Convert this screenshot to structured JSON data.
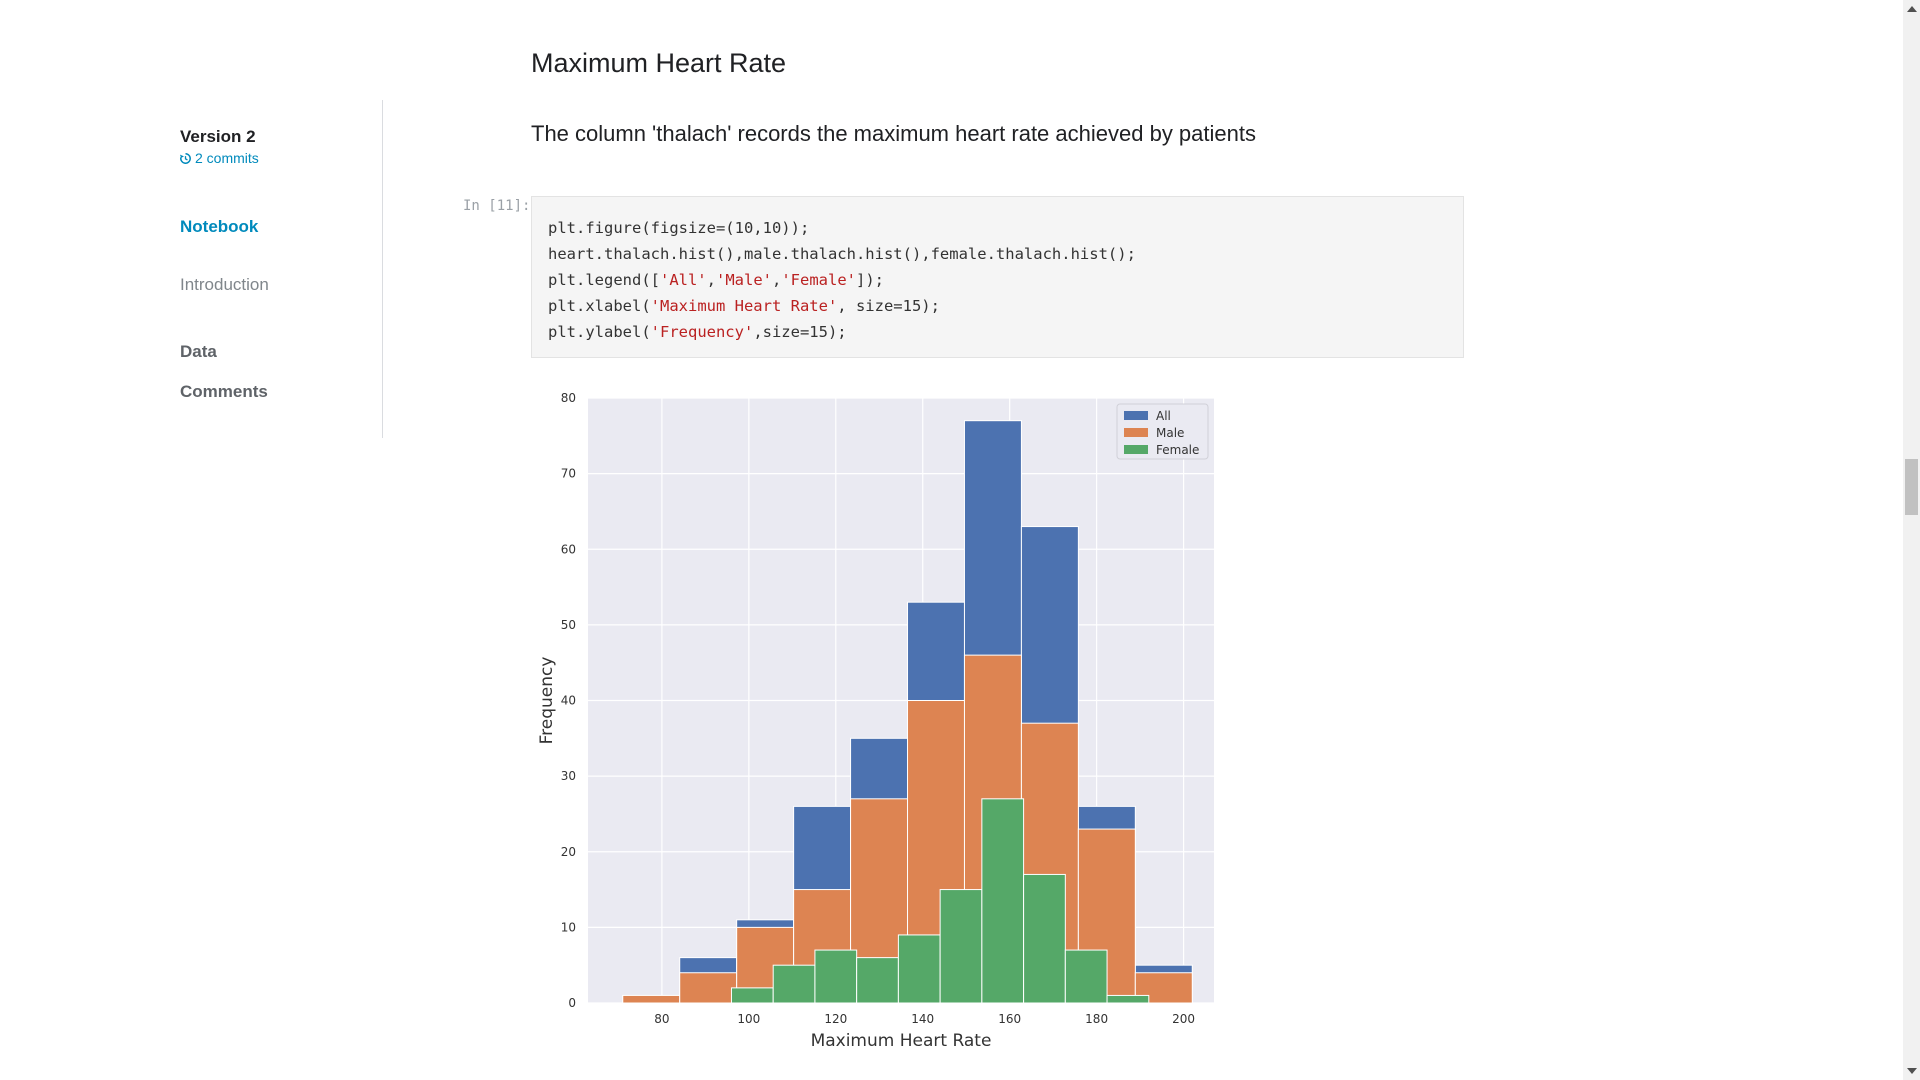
{
  "sidebar": {
    "version_title": "Version 2",
    "commits_label": "2 commits",
    "nav": [
      {
        "label": "Notebook",
        "active": true
      },
      {
        "label": "Introduction",
        "active": false
      },
      {
        "label": "Data",
        "active": false
      },
      {
        "label": "Comments",
        "active": false
      }
    ],
    "accent_color": "#008abc"
  },
  "main": {
    "section_heading": "Maximum Heart Rate",
    "description": "The column 'thalach' records the maximum heart rate achieved by patients",
    "cell_prompt": "In [11]:",
    "code": {
      "line1": "plt.figure(figsize=(10,10));",
      "line2": "heart.thalach.hist(),male.thalach.hist(),female.thalach.hist();",
      "line3_pre": "plt.legend([",
      "line3_s1": "'All'",
      "line3_c1": ",",
      "line3_s2": "'Male'",
      "line3_c2": ",",
      "line3_s3": "'Female'",
      "line3_post": "]);",
      "line4_pre": "plt.xlabel(",
      "line4_s": "'Maximum Heart Rate'",
      "line4_post": ", size=15);",
      "line5_pre": "plt.ylabel(",
      "line5_s": "'Frequency'",
      "line5_post": ",size=15);"
    }
  },
  "chart_data": {
    "type": "bar",
    "subtype": "overlaid_histogram",
    "xlabel": "Maximum Heart Rate",
    "ylabel": "Frequency",
    "xlim": [
      63,
      207
    ],
    "ylim": [
      0,
      80
    ],
    "xticks": [
      80,
      100,
      120,
      140,
      160,
      180,
      200
    ],
    "yticks": [
      0,
      10,
      20,
      30,
      40,
      50,
      60,
      70,
      80
    ],
    "grid": true,
    "legend_position": "top-right",
    "series": [
      {
        "name": "All",
        "color": "#4c72b0",
        "bins": [
          [
            71,
            84.1,
            1
          ],
          [
            84.1,
            97.2,
            6
          ],
          [
            97.2,
            110.3,
            11
          ],
          [
            110.3,
            123.4,
            26
          ],
          [
            123.4,
            136.5,
            35
          ],
          [
            136.5,
            149.6,
            53
          ],
          [
            149.6,
            162.7,
            77
          ],
          [
            162.7,
            175.8,
            63
          ],
          [
            175.8,
            188.9,
            26
          ],
          [
            188.9,
            202,
            5
          ]
        ]
      },
      {
        "name": "Male",
        "color": "#dd8452",
        "bins": [
          [
            71,
            84.1,
            1
          ],
          [
            84.1,
            97.2,
            4
          ],
          [
            97.2,
            110.3,
            10
          ],
          [
            110.3,
            123.4,
            15
          ],
          [
            123.4,
            136.5,
            27
          ],
          [
            136.5,
            149.6,
            40
          ],
          [
            149.6,
            162.7,
            46
          ],
          [
            162.7,
            175.8,
            37
          ],
          [
            175.8,
            188.9,
            23
          ],
          [
            188.9,
            202,
            4
          ]
        ]
      },
      {
        "name": "Female",
        "color": "#55a868",
        "bins": [
          [
            96,
            105.6,
            2
          ],
          [
            105.6,
            115.2,
            5
          ],
          [
            115.2,
            124.8,
            7
          ],
          [
            124.8,
            134.4,
            6
          ],
          [
            134.4,
            144,
            9
          ],
          [
            144,
            153.6,
            15
          ],
          [
            153.6,
            163.2,
            27
          ],
          [
            163.2,
            172.8,
            17
          ],
          [
            172.8,
            182.4,
            7
          ],
          [
            182.4,
            192,
            1
          ]
        ]
      }
    ]
  }
}
